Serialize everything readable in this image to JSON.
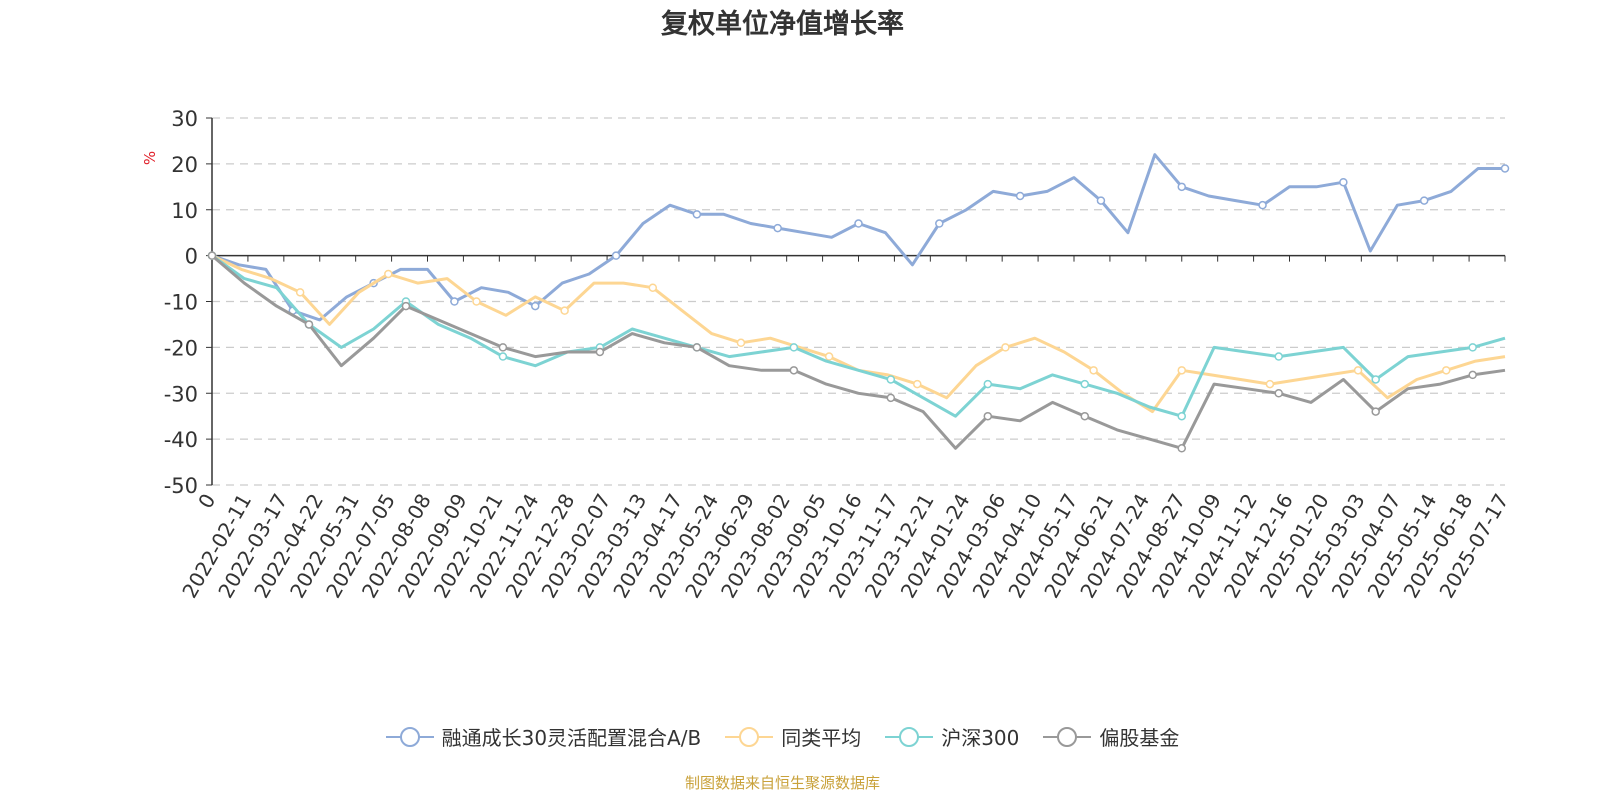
{
  "chart_data": {
    "type": "line",
    "title": "复权单位净值增长率",
    "ylabel": "%",
    "ylim": [
      -50,
      30
    ],
    "yticks": [
      30,
      20,
      10,
      0,
      -10,
      -20,
      -30,
      -40,
      -50
    ],
    "x_tick_labels": [
      "0",
      "2022-02-11",
      "2022-03-17",
      "2022-04-22",
      "2022-05-31",
      "2022-07-05",
      "2022-08-08",
      "2022-09-09",
      "2022-10-21",
      "2022-11-24",
      "2022-12-28",
      "2023-02-07",
      "2023-03-13",
      "2023-04-17",
      "2023-05-24",
      "2023-06-29",
      "2023-08-02",
      "2023-09-05",
      "2023-10-16",
      "2023-11-17",
      "2023-12-21",
      "2024-01-24",
      "2024-03-06",
      "2024-04-10",
      "2024-05-17",
      "2024-06-21",
      "2024-07-24",
      "2024-08-27",
      "2024-10-09",
      "2024-11-12",
      "2024-12-16",
      "2025-01-20",
      "2025-03-03",
      "2025-04-07",
      "2025-05-14",
      "2025-06-18",
      "2025-07-17"
    ],
    "grid": "horizontal dashed",
    "legend_position": "bottom",
    "series": [
      {
        "name": "融通成长30灵活配置混合A/B",
        "color": "#8eaad8",
        "values": [
          0,
          -2,
          -3,
          -12,
          -14,
          -9,
          -6,
          -3,
          -3,
          -10,
          -7,
          -8,
          -11,
          -6,
          -4,
          0,
          7,
          11,
          9,
          9,
          7,
          6,
          5,
          4,
          7,
          5,
          -2,
          7,
          10,
          14,
          13,
          14,
          17,
          12,
          5,
          22,
          15,
          13,
          12,
          11,
          15,
          15,
          16,
          1,
          11,
          12,
          14,
          19,
          19
        ]
      },
      {
        "name": "同类平均",
        "color": "#fdd693",
        "values": [
          0,
          -3,
          -5,
          -8,
          -15,
          -8,
          -4,
          -6,
          -5,
          -10,
          -13,
          -9,
          -12,
          -6,
          -6,
          -7,
          -12,
          -17,
          -19,
          -18,
          -20,
          -22,
          -25,
          -26,
          -28,
          -31,
          -24,
          -20,
          -18,
          -21,
          -25,
          -30,
          -34,
          -25,
          -26,
          -27,
          -28,
          -27,
          -26,
          -25,
          -31,
          -27,
          -25,
          -23,
          -22
        ]
      },
      {
        "name": "沪深300",
        "color": "#7dd3d3",
        "values": [
          0,
          -5,
          -7,
          -15,
          -20,
          -16,
          -10,
          -15,
          -18,
          -22,
          -24,
          -21,
          -20,
          -16,
          -18,
          -20,
          -22,
          -21,
          -20,
          -23,
          -25,
          -27,
          -31,
          -35,
          -28,
          -29,
          -26,
          -28,
          -30,
          -33,
          -35,
          -20,
          -21,
          -22,
          -21,
          -20,
          -27,
          -22,
          -21,
          -20,
          -18
        ]
      },
      {
        "name": "偏股基金",
        "color": "#999999",
        "values": [
          0,
          -6,
          -11,
          -15,
          -24,
          -18,
          -11,
          -14,
          -17,
          -20,
          -22,
          -21,
          -21,
          -17,
          -19,
          -20,
          -24,
          -25,
          -25,
          -28,
          -30,
          -31,
          -34,
          -42,
          -35,
          -36,
          -32,
          -35,
          -38,
          -40,
          -42,
          -28,
          -29,
          -30,
          -32,
          -27,
          -34,
          -29,
          -28,
          -26,
          -25
        ]
      }
    ]
  },
  "legend": {
    "items": [
      "融通成长30灵活配置混合A/B",
      "同类平均",
      "沪深300",
      "偏股基金"
    ]
  },
  "source_text": "制图数据来自恒生聚源数据库"
}
